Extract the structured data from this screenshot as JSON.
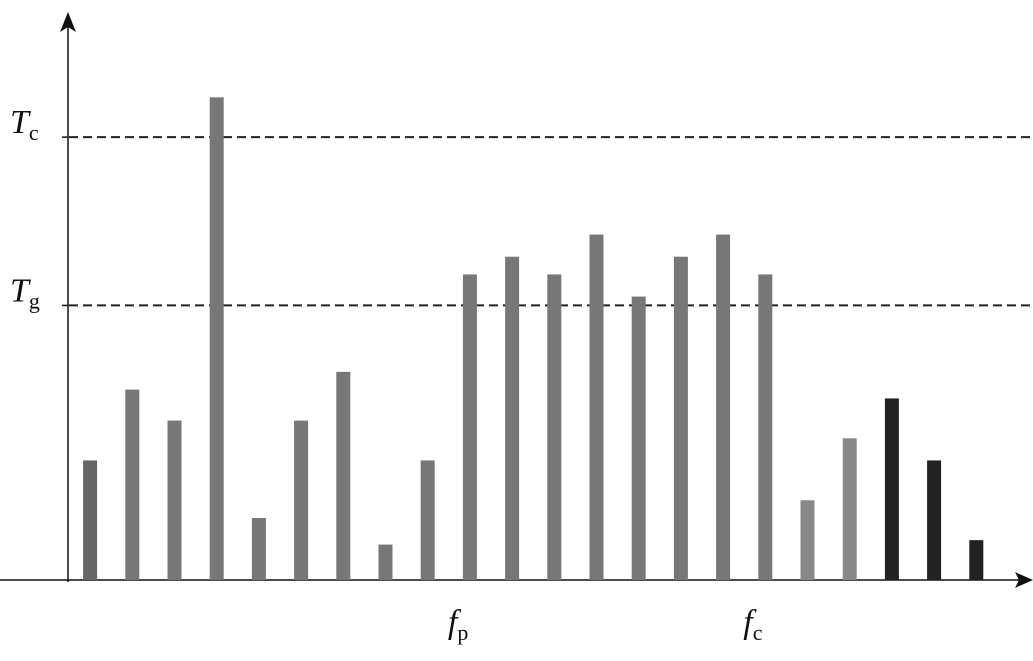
{
  "chart_data": {
    "type": "bar",
    "categories": [
      null,
      null,
      null,
      null,
      null,
      null,
      null,
      null,
      null,
      {
        "symbol": "f",
        "subscript": "p"
      },
      null,
      null,
      null,
      null,
      null,
      null,
      {
        "symbol": "f",
        "subscript": "c"
      },
      null,
      null,
      null,
      null,
      null
    ],
    "values": [
      27,
      43,
      36,
      109,
      14,
      36,
      47,
      8,
      27,
      69,
      73,
      69,
      78,
      64,
      73,
      78,
      69,
      18,
      32,
      41,
      27,
      9
    ],
    "colors": [
      "#666666",
      "#777777",
      "#777777",
      "#777777",
      "#777777",
      "#777777",
      "#777777",
      "#777777",
      "#777777",
      "#777777",
      "#777777",
      "#777777",
      "#777777",
      "#777777",
      "#777777",
      "#777777",
      "#777777",
      "#888888",
      "#888888",
      "#222222",
      "#222222",
      "#222222"
    ],
    "ylim": [
      0,
      126
    ],
    "thresholds": [
      {
        "symbol": "T",
        "subscript": "c",
        "value": 100
      },
      {
        "symbol": "T",
        "subscript": "g",
        "value": 62
      }
    ]
  }
}
